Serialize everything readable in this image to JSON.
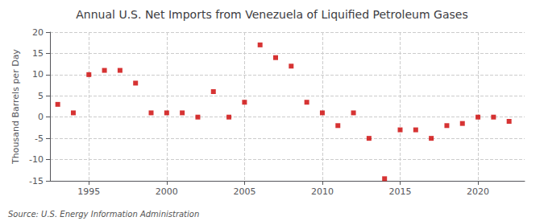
{
  "chart_data": {
    "type": "scatter",
    "title": "Annual U.S. Net Imports from Venezuela of Liquified Petroleum Gases",
    "ylabel": "Thousand Barrels per Day",
    "annotations": [
      "Source: U.S. Energy Information Administration"
    ],
    "x": [
      1993,
      1994,
      1995,
      1996,
      1997,
      1998,
      1999,
      2000,
      2001,
      2002,
      2003,
      2004,
      2005,
      2006,
      2007,
      2008,
      2009,
      2010,
      2011,
      2012,
      2013,
      2014,
      2015,
      2016,
      2017,
      2018,
      2019,
      2020,
      2021,
      2022
    ],
    "values": [
      3.0,
      1.0,
      10.0,
      11.0,
      11.0,
      8.0,
      1.0,
      1.0,
      1.0,
      0.0,
      6.0,
      0.0,
      3.5,
      17.0,
      14.0,
      12.0,
      3.5,
      1.0,
      -2.0,
      1.0,
      -5.0,
      -14.5,
      -3.0,
      -3.0,
      -5.0,
      -2.0,
      -1.5,
      0.0,
      0.0,
      -1.0
    ],
    "color": "#cc0000",
    "marker": "square",
    "xlim": [
      1992.5,
      2023
    ],
    "xticks": [
      1995,
      2000,
      2005,
      2010,
      2015,
      2020
    ],
    "ylim": [
      -15,
      20
    ],
    "yticks": [
      -15,
      -10,
      -5,
      0,
      5,
      10,
      15,
      20
    ],
    "grid": true
  }
}
